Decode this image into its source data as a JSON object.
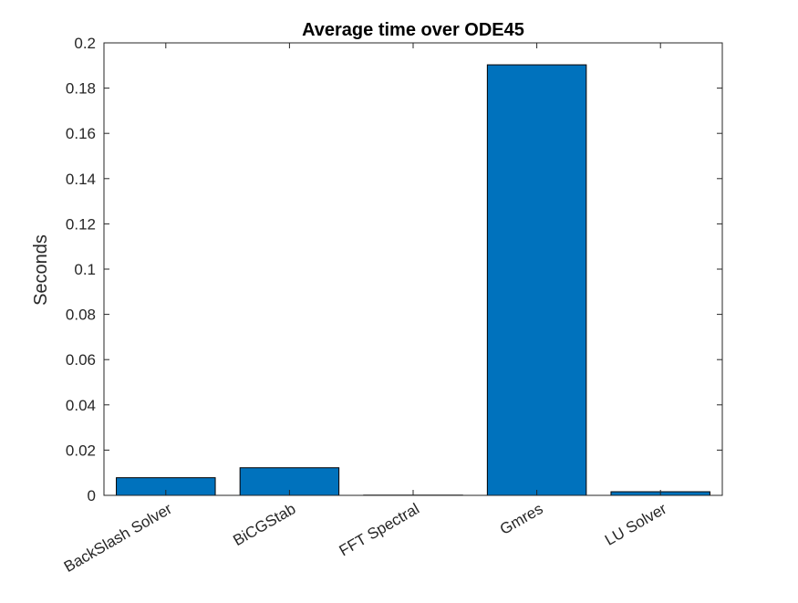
{
  "chart_data": {
    "type": "bar",
    "title": "Average time over ODE45",
    "xlabel": "",
    "ylabel": "Seconds",
    "categories": [
      "BackSlash Solver",
      "BiCGStab",
      "FFT Spectral",
      "Gmres",
      "LU Solver"
    ],
    "values": [
      0.0078,
      0.0122,
      0.0001,
      0.1903,
      0.0016
    ],
    "ylim": [
      0,
      0.2
    ],
    "yticks": [
      0,
      0.02,
      0.04,
      0.06,
      0.08,
      0.1,
      0.12,
      0.14,
      0.16,
      0.18,
      0.2
    ],
    "ytick_labels": [
      "0",
      "0.02",
      "0.04",
      "0.06",
      "0.08",
      "0.1",
      "0.12",
      "0.14",
      "0.16",
      "0.18",
      "0.2"
    ],
    "grid": false,
    "legend": "none",
    "colors": {
      "bar_fill": "#0072BD",
      "bar_edge": "#000000",
      "axis": "#262626"
    }
  }
}
